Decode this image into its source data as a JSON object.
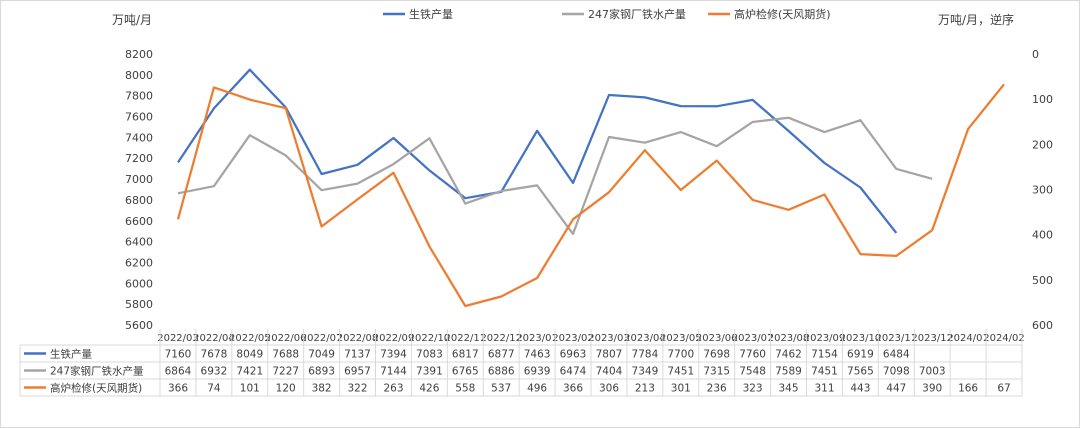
{
  "chart_data": {
    "type": "line",
    "title": "",
    "left_axis_label": "万吨/月",
    "right_axis_label": "万吨/月，逆序",
    "left_axis": {
      "min": 5600,
      "max": 8200,
      "step": 200
    },
    "right_axis": {
      "min": 0,
      "max": 600,
      "step": 100,
      "reversed": true
    },
    "categories": [
      "2022/03",
      "2022/04",
      "2022/05",
      "2022/06",
      "2022/07",
      "2022/08",
      "2022/09",
      "2022/10",
      "2022/11",
      "2022/12",
      "2023/01",
      "2023/02",
      "2023/03",
      "2023/04",
      "2023/05",
      "2023/06",
      "2023/07",
      "2023/08",
      "2023/09",
      "2023/10",
      "2023/11",
      "2023/12",
      "2024/01",
      "2024/02"
    ],
    "series": [
      {
        "name": "生铁产量",
        "axis": "left",
        "color": "#4472c4",
        "values": [
          7160,
          7678,
          8049,
          7688,
          7049,
          7137,
          7394,
          7083,
          6817,
          6877,
          7463,
          6963,
          7807,
          7784,
          7700,
          7698,
          7760,
          7462,
          7154,
          6919,
          6484,
          null,
          null,
          null
        ]
      },
      {
        "name": "247家钢厂铁水产量",
        "axis": "left",
        "color": "#a5a5a5",
        "values": [
          6864,
          6932,
          7421,
          7227,
          6893,
          6957,
          7144,
          7391,
          6765,
          6886,
          6939,
          6474,
          7404,
          7349,
          7451,
          7315,
          7548,
          7589,
          7451,
          7565,
          7098,
          7003,
          null,
          null
        ]
      },
      {
        "name": "高炉检修(天风期货)",
        "axis": "right",
        "color": "#ed7d31",
        "values": [
          366,
          74,
          101,
          120,
          382,
          322,
          263,
          426,
          558,
          537,
          496,
          366,
          306,
          213,
          301,
          236,
          323,
          345,
          311,
          443,
          447,
          390,
          166,
          67
        ]
      }
    ]
  }
}
